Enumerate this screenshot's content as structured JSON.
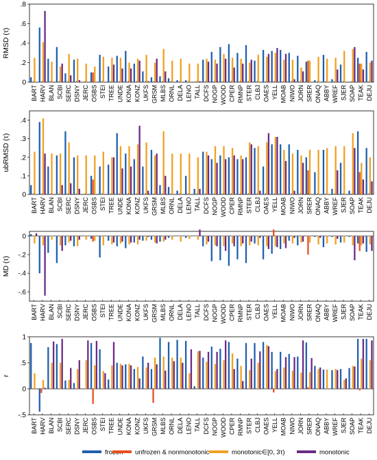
{
  "chart_data": [
    {
      "type": "bar",
      "ylabel": "RMSD (τ)",
      "ylim": [
        0,
        0.8
      ],
      "yticks": [
        0,
        0.2,
        0.4,
        0.6,
        0.8
      ],
      "sites": [
        "BART",
        "HARV",
        "BLAN",
        "SCBI",
        "SERC",
        "DSNY",
        "JERC",
        "OSBS",
        "STEI",
        "TREE",
        "UNDE",
        "KONA",
        "KONZ",
        "UKFS",
        "GRSM",
        "MLBS",
        "ORNL",
        "DELA",
        "LENO",
        "TALL",
        "DCFS",
        "NOGP",
        "WOOD",
        "CPER",
        "RMNP",
        "STER",
        "CLBJ",
        "OAES",
        "YELL",
        "MOAB",
        "NIWO",
        "JORN",
        "SRER",
        "ONAQ",
        "ABBY",
        "WREF",
        "SJER",
        "SOAP",
        "TEAK",
        "DEJU"
      ],
      "series": [
        {
          "name": "frozen",
          "color": "#1f5fae",
          "values": [
            0.05,
            0.56,
            0.24,
            0.36,
            0.09,
            0.23,
            0,
            0.1,
            0.28,
            0.16,
            0.27,
            0.32,
            0.19,
            0.11,
            0.05,
            0.06,
            0.04,
            0.02,
            0.02,
            0,
            0.23,
            0.31,
            0.36,
            0.39,
            0.3,
            0.38,
            0.22,
            0.33,
            0.32,
            0.33,
            0.3,
            0.27,
            0.21,
            0.02,
            0.28,
            0.03,
            0.18,
            0,
            0.25,
            0.31
          ]
        },
        {
          "name": "unfrozen & nonmonotonic",
          "color": "#e8501e",
          "values": [
            0,
            0,
            0,
            0,
            0,
            0,
            0,
            0.1,
            0,
            0,
            0,
            0,
            0,
            0,
            0,
            0,
            0,
            0,
            0,
            0,
            0,
            0,
            0,
            0,
            0,
            0,
            0,
            0,
            0,
            0,
            0,
            0,
            0.22,
            0,
            0,
            0,
            0,
            0,
            0.19,
            0
          ]
        },
        {
          "name": "monotonic∈[0, 3τ)",
          "color": "#f0a020",
          "values": [
            0.25,
            0.41,
            0.21,
            0.16,
            0.29,
            0.24,
            0.19,
            0.16,
            0.26,
            0.25,
            0.25,
            0.2,
            0.24,
            0.28,
            0.2,
            0.34,
            0.22,
            0.24,
            0.19,
            0.19,
            0.24,
            0.23,
            0.29,
            0.25,
            0.24,
            0.2,
            0.28,
            0.26,
            0.3,
            0.23,
            0.23,
            0.15,
            0.22,
            0.26,
            0.24,
            0.25,
            0.32,
            0.34,
            0.19,
            0.2
          ]
        },
        {
          "name": "monotonic",
          "color": "#6a2a86",
          "values": [
            0,
            0.73,
            0,
            0.19,
            0.07,
            0.02,
            0,
            0,
            0,
            0.18,
            0.14,
            0.14,
            0.22,
            0.01,
            0.24,
            0.11,
            0,
            0,
            0,
            0.01,
            0.21,
            0.19,
            0.24,
            0.15,
            0.19,
            0.23,
            0,
            0.29,
            0.35,
            0.29,
            0.03,
            0.11,
            0,
            0,
            0,
            0.13,
            0,
            0.36,
            0.13,
            0.22
          ]
        }
      ]
    },
    {
      "type": "bar",
      "ylabel": "ubRMSD (τ)",
      "ylim": [
        0,
        0.45
      ],
      "yticks": [
        0,
        0.1,
        0.2,
        0.3,
        0.4
      ],
      "sites": [
        "BART",
        "HARV",
        "BLAN",
        "SCBI",
        "SERC",
        "DSNY",
        "JERC",
        "OSBS",
        "STEI",
        "TREE",
        "UNDE",
        "KONA",
        "KONZ",
        "UKFS",
        "GRSM",
        "MLBS",
        "ORNL",
        "DELA",
        "LENO",
        "TALL",
        "DCFS",
        "NOGP",
        "WOOD",
        "CPER",
        "RMNP",
        "STER",
        "CLBJ",
        "OAES",
        "YELL",
        "MOAB",
        "NIWO",
        "JORN",
        "SRER",
        "ONAQ",
        "ABBY",
        "WREF",
        "SJER",
        "SOAP",
        "TEAK",
        "DEJU"
      ],
      "series": [
        {
          "name": "frozen",
          "color": "#1f5fae",
          "values": [
            0.05,
            0.39,
            0.15,
            0.21,
            0.34,
            0.2,
            0,
            0.1,
            0.15,
            0.16,
            0.33,
            0.22,
            0.19,
            0.15,
            0.24,
            0.05,
            0.04,
            0.02,
            0.1,
            0.03,
            0.23,
            0.19,
            0.21,
            0.2,
            0.19,
            0.2,
            0.25,
            0.15,
            0.27,
            0.27,
            0.27,
            0.24,
            0.2,
            0.12,
            0.24,
            0.03,
            0.17,
            0.02,
            0.34,
            0.25
          ]
        },
        {
          "name": "unfrozen & nonmonotonic",
          "color": "#e8501e",
          "values": [
            0,
            0,
            0,
            0,
            0,
            0,
            0,
            0.08,
            0,
            0,
            0,
            0,
            0,
            0,
            0,
            0,
            0,
            0,
            0,
            0,
            0,
            0,
            0,
            0,
            0,
            0,
            0,
            0,
            0,
            0,
            0,
            0,
            0.13,
            0,
            0,
            0,
            0,
            0,
            0.12,
            0
          ]
        },
        {
          "name": "monotonic∈[0, 3τ)",
          "color": "#f0a020",
          "values": [
            0.23,
            0.41,
            0.22,
            0.22,
            0.28,
            0.21,
            0.21,
            0.21,
            0.23,
            0.2,
            0.26,
            0.26,
            0.27,
            0.28,
            0.21,
            0.34,
            0.22,
            0.22,
            0.22,
            0.2,
            0.23,
            0.26,
            0.26,
            0.25,
            0.21,
            0.28,
            0.26,
            0.28,
            0.31,
            0.24,
            0.22,
            0.21,
            0.24,
            0.24,
            0.25,
            0.26,
            0.26,
            0.33,
            0.17,
            0.2
          ]
        },
        {
          "name": "monotonic",
          "color": "#6a2a86",
          "values": [
            0,
            0.22,
            0,
            0.05,
            0.06,
            0.03,
            0,
            0,
            0,
            0.2,
            0.14,
            0.15,
            0.37,
            0.02,
            0.22,
            0.1,
            0,
            0,
            0,
            0.03,
            0.21,
            0.17,
            0.19,
            0.21,
            0.19,
            0.27,
            0.02,
            0.33,
            0.31,
            0.18,
            0.02,
            0.17,
            0,
            0,
            0,
            0.13,
            0,
            0.25,
            0.08,
            0.07
          ]
        }
      ]
    },
    {
      "type": "bar",
      "ylabel": "MD (τ)",
      "ylim": [
        -0.7,
        0.05
      ],
      "yticks": [
        0,
        -0.2,
        -0.4,
        -0.6
      ],
      "sites": [
        "BART",
        "HARV",
        "BLAN",
        "SCBI",
        "SERC",
        "DSNY",
        "JERC",
        "OSBS",
        "STEI",
        "TREE",
        "UNDE",
        "KONA",
        "KONZ",
        "UKFS",
        "GRSM",
        "MLBS",
        "ORNL",
        "DELA",
        "LENO",
        "TALL",
        "DCFS",
        "NOGP",
        "WOOD",
        "CPER",
        "RMNP",
        "STER",
        "CLBJ",
        "OAES",
        "YELL",
        "MOAB",
        "NIWO",
        "JORN",
        "SRER",
        "ONAQ",
        "ABBY",
        "WREF",
        "SJER",
        "SOAP",
        "TEAK",
        "DEJU"
      ],
      "series": [
        {
          "name": "frozen",
          "color": "#1f5fae",
          "values": [
            0.02,
            -0.4,
            -0.18,
            -0.29,
            -0.1,
            -0.11,
            0,
            -0.03,
            -0.23,
            -0.05,
            -0.11,
            -0.13,
            -0.07,
            -0.05,
            -0.04,
            -0.06,
            -0.02,
            0,
            -0.02,
            0,
            -0.11,
            -0.27,
            -0.26,
            -0.32,
            -0.25,
            -0.29,
            -0.08,
            -0.25,
            -0.19,
            -0.14,
            -0.05,
            -0.1,
            0,
            -0.01,
            -0.12,
            -0.01,
            -0.07,
            -0.01,
            -0.08,
            -0.17
          ]
        },
        {
          "name": "unfrozen & nonmonotonic",
          "color": "#e8501e",
          "values": [
            0,
            0,
            0,
            0,
            0,
            0,
            0,
            -0.06,
            0,
            0,
            0,
            0,
            0,
            0,
            0,
            0,
            0,
            0,
            0,
            0,
            0,
            0,
            0,
            0,
            0,
            0,
            0,
            0,
            0.07,
            0,
            0,
            0,
            -0.2,
            0,
            0,
            0,
            0,
            0,
            -0.16,
            0
          ]
        },
        {
          "name": "monotonic∈[0, 3τ)",
          "color": "#f0a020",
          "values": [
            -0.08,
            -0.1,
            -0.04,
            -0.1,
            -0.07,
            -0.11,
            -0.04,
            -0.05,
            -0.1,
            -0.09,
            -0.08,
            -0.09,
            -0.09,
            -0.05,
            -0.07,
            -0.06,
            -0.04,
            -0.06,
            -0.03,
            -0.04,
            -0.09,
            -0.1,
            -0.11,
            -0.08,
            -0.11,
            -0.1,
            -0.1,
            -0.11,
            -0.11,
            -0.08,
            -0.08,
            -0.07,
            -0.07,
            -0.09,
            -0.08,
            -0.09,
            -0.07,
            -0.1,
            -0.1,
            -0.09
          ]
        },
        {
          "name": "monotonic",
          "color": "#6a2a86",
          "values": [
            0.03,
            -0.64,
            0,
            -0.16,
            -0.05,
            -0.04,
            0,
            0,
            0,
            -0.07,
            -0.06,
            -0.07,
            -0.04,
            -0.01,
            -0.08,
            -0.04,
            0,
            0,
            0,
            0.07,
            -0.06,
            -0.11,
            -0.16,
            -0.11,
            -0.08,
            -0.06,
            -0.02,
            -0.14,
            -0.12,
            -0.13,
            -0.02,
            -0.06,
            0,
            -0.02,
            0,
            -0.03,
            0,
            -0.26,
            -0.08,
            -0.16
          ]
        }
      ]
    },
    {
      "type": "bar",
      "ylabel": "r",
      "ylim": [
        -0.5,
        1
      ],
      "yticks": [
        1,
        0.5,
        0,
        -0.5
      ],
      "sites": [
        "BART",
        "HARV",
        "BLAN",
        "SCBI",
        "SERC",
        "DSNY",
        "JERC",
        "OSBS",
        "STEI",
        "TREE",
        "UNDE",
        "KONA",
        "KONZ",
        "UKFS",
        "GRSM",
        "MLBS",
        "ORNL",
        "DELA",
        "LENO",
        "TALL",
        "DCFS",
        "NOGP",
        "WOOD",
        "CPER",
        "RMNP",
        "STER",
        "CLBJ",
        "OAES",
        "YELL",
        "MOAB",
        "NIWO",
        "JORN",
        "SRER",
        "ONAQ",
        "ABBY",
        "WREF",
        "SJER",
        "SOAP",
        "TEAK",
        "DEJU"
      ],
      "series": [
        {
          "name": "frozen",
          "color": "#1f5fae",
          "values": [
            0.88,
            -0.44,
            0.8,
            0.86,
            0.16,
            0.11,
            0,
            0.88,
            0.76,
            0.18,
            0.5,
            0.47,
            0.38,
            0.62,
            0.38,
            0.98,
            0.9,
            0.94,
            0.92,
            0.05,
            0.6,
            0.81,
            0.77,
            0.9,
            0.58,
            0.88,
            0.88,
            0.9,
            0.71,
            0.71,
            0.67,
            0.62,
            0.89,
            0.44,
            0.37,
            0.36,
            0.38,
            0.4,
            0.96,
            0.96
          ]
        },
        {
          "name": "unfrozen & nonmonotonic",
          "color": "#e8501e",
          "values": [
            0,
            -0.08,
            0,
            0,
            0,
            0,
            0,
            -0.29,
            0,
            0,
            0,
            0,
            0,
            0,
            -0.27,
            0,
            0,
            0,
            0,
            0,
            0,
            0,
            0,
            0,
            0,
            0,
            0,
            0,
            -0.07,
            0,
            0,
            0,
            0.03,
            0,
            0,
            0,
            0,
            0,
            -0.03,
            0
          ]
        },
        {
          "name": "monotonic∈[0, 3τ)",
          "color": "#f0a020",
          "values": [
            0.3,
            0.17,
            0.5,
            0.5,
            0.17,
            0.38,
            0.55,
            0.45,
            0.34,
            0.45,
            0.48,
            0.48,
            0.42,
            0.41,
            0.6,
            0.62,
            0.6,
            0.6,
            0.3,
            0.72,
            0.52,
            0.48,
            0.55,
            0.68,
            0.44,
            0.36,
            0.5,
            0.84,
            0.34,
            0.41,
            0.35,
            0.31,
            0.32,
            0.38,
            0.37,
            0.38,
            0.17,
            0.44,
            0.58,
            0.55
          ]
        },
        {
          "name": "monotonic",
          "color": "#6a2a86",
          "values": [
            0,
            0.02,
            0.91,
            0.96,
            0.4,
            0.55,
            0.93,
            0.92,
            0.3,
            0.9,
            0.45,
            0.45,
            0.2,
            0.5,
            0.47,
            0.35,
            0.53,
            0.5,
            0.76,
            0.73,
            0.71,
            0.71,
            0.93,
            0.38,
            0.15,
            0.58,
            0.72,
            0.82,
            0.38,
            0.61,
            0.61,
            0.93,
            0.59,
            0.41,
            0,
            0.36,
            0.2,
            0.43,
            0.96,
            0.93
          ]
        }
      ]
    }
  ],
  "legend": [
    {
      "label": "frozen",
      "color": "#1f5fae"
    },
    {
      "label": "unfrozen & nonmonotonic",
      "color": "#e8501e"
    },
    {
      "label": "monotonic∈[0, 3τ)",
      "color": "#f0a020"
    },
    {
      "label": "monotonic",
      "color": "#6a2a86"
    }
  ]
}
